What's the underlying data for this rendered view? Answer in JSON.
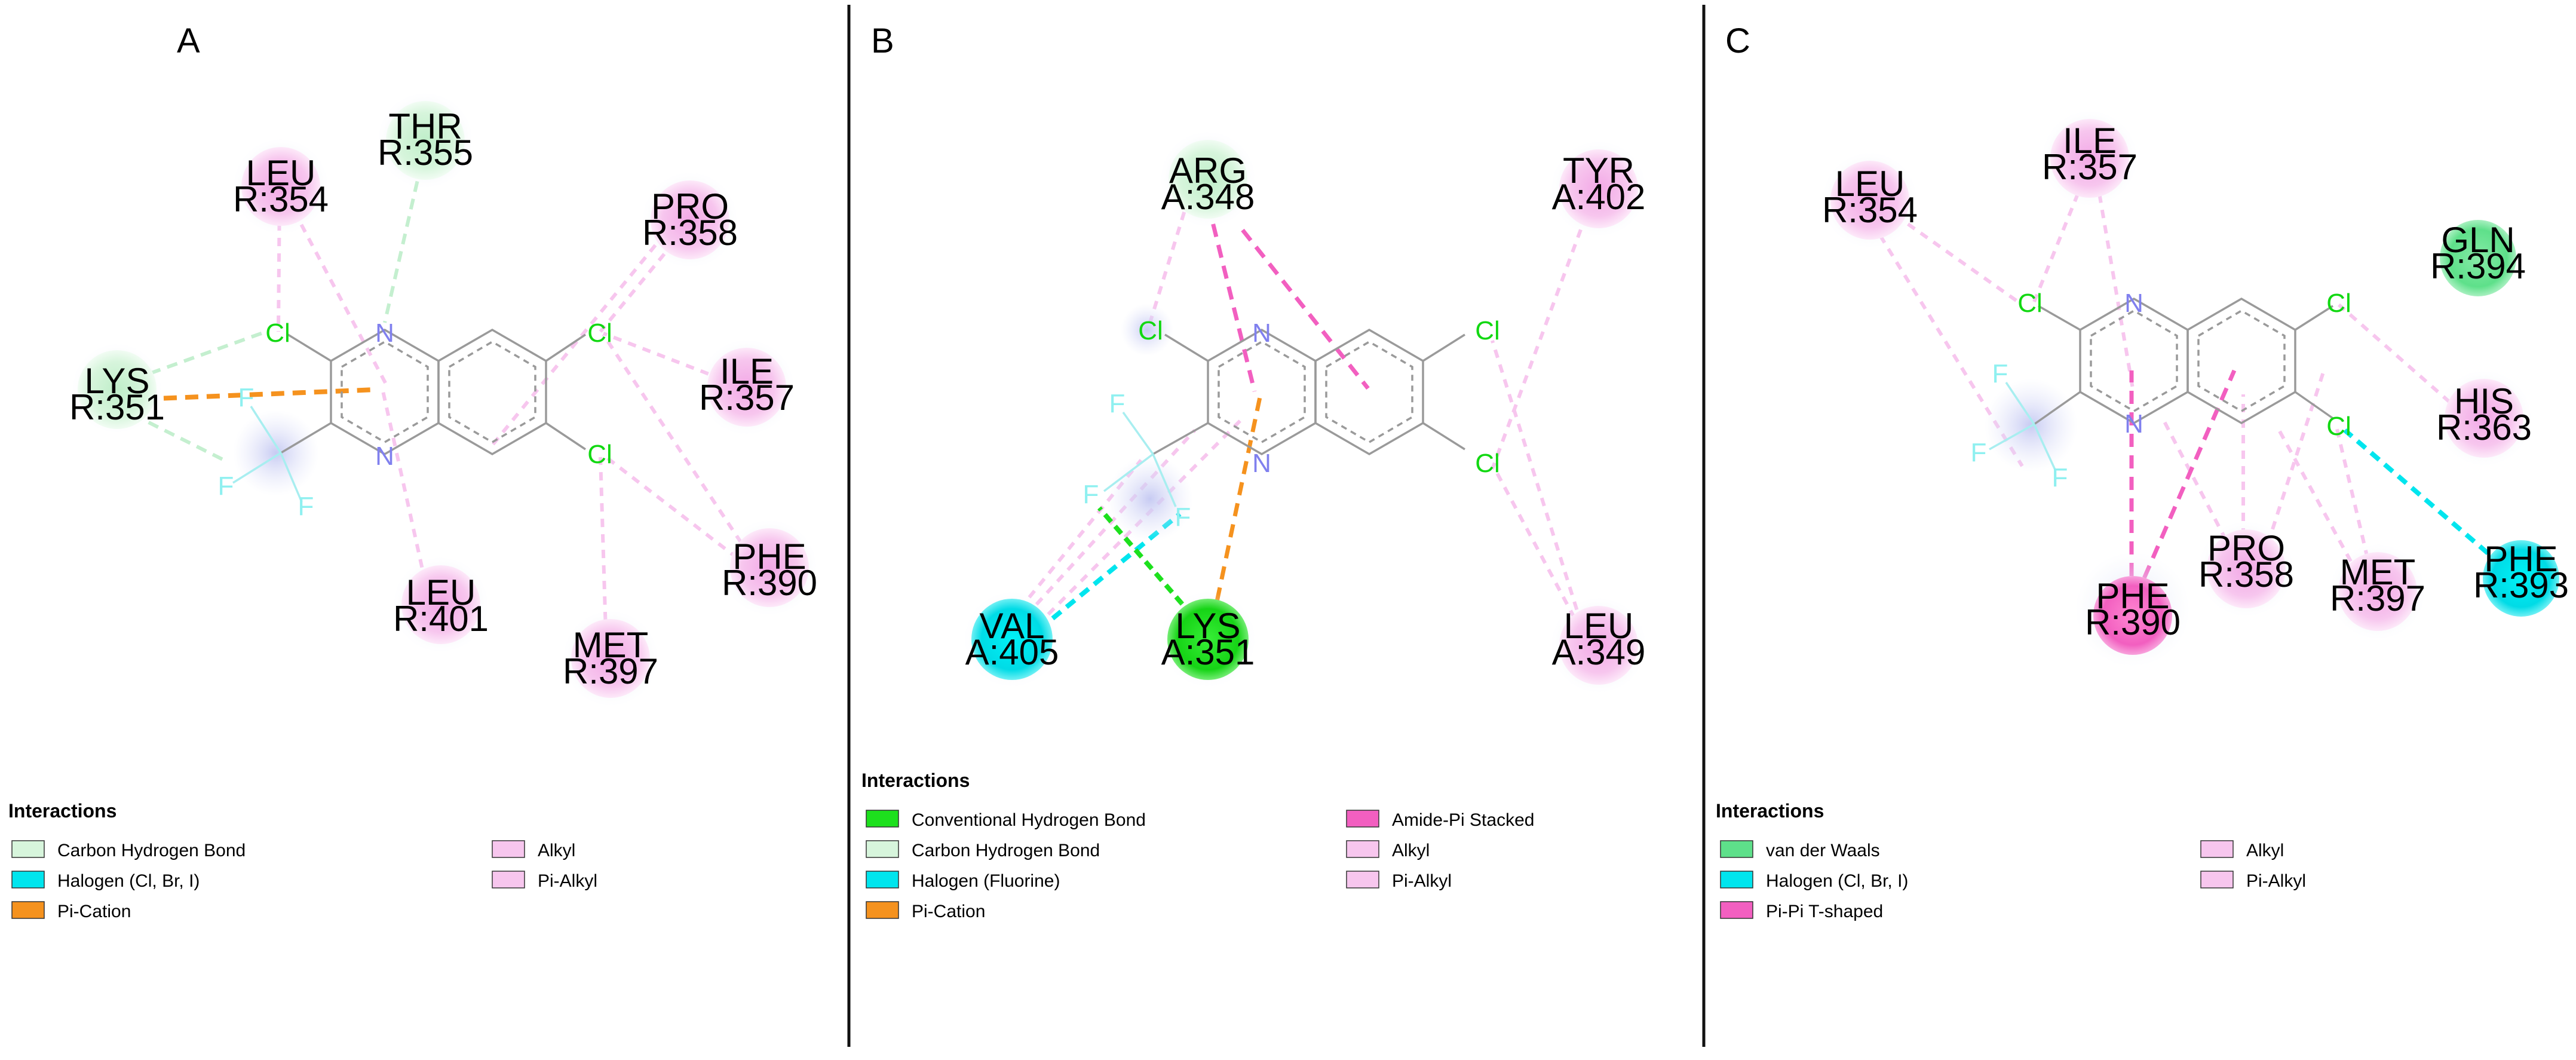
{
  "panels": [
    {
      "label": "A",
      "residues": [
        {
          "name": "THR",
          "id": "R:355",
          "kind": "carbon-h"
        },
        {
          "name": "LEU",
          "id": "R:354",
          "kind": "alkyl"
        },
        {
          "name": "PRO",
          "id": "R:358",
          "kind": "alkyl"
        },
        {
          "name": "LYS",
          "id": "R:351",
          "kind": "carbon-h"
        },
        {
          "name": "ILE",
          "id": "R:357",
          "kind": "alkyl"
        },
        {
          "name": "PHE",
          "id": "R:390",
          "kind": "alkyl"
        },
        {
          "name": "LEU",
          "id": "R:401",
          "kind": "alkyl"
        },
        {
          "name": "MET",
          "id": "R:397",
          "kind": "alkyl"
        }
      ],
      "legend": {
        "title": "Interactions",
        "items": [
          {
            "label": "Carbon Hydrogen Bond",
            "color": "#d7f5dc"
          },
          {
            "label": "Halogen (Cl, Br, I)",
            "color": "#00e5ee"
          },
          {
            "label": "Pi-Cation",
            "color": "#f5921e"
          },
          {
            "label": "Alkyl",
            "color": "#f7c6ee"
          },
          {
            "label": "Pi-Alkyl",
            "color": "#f7c6ee"
          }
        ]
      }
    },
    {
      "label": "B",
      "residues": [
        {
          "name": "ARG",
          "id": "A:348",
          "kind": "carbon-h"
        },
        {
          "name": "TYR",
          "id": "A:402",
          "kind": "alkyl"
        },
        {
          "name": "VAL",
          "id": "A:405",
          "kind": "halogen"
        },
        {
          "name": "LYS",
          "id": "A:351",
          "kind": "hbond"
        },
        {
          "name": "LEU",
          "id": "A:349",
          "kind": "alkyl"
        }
      ],
      "legend": {
        "title": "Interactions",
        "items": [
          {
            "label": "Conventional Hydrogen Bond",
            "color": "#1de01d"
          },
          {
            "label": "Carbon Hydrogen Bond",
            "color": "#d7f5dc"
          },
          {
            "label": "Halogen (Fluorine)",
            "color": "#00e5ee"
          },
          {
            "label": "Pi-Cation",
            "color": "#f5921e"
          },
          {
            "label": "Amide-Pi Stacked",
            "color": "#f25fc0"
          },
          {
            "label": "Alkyl",
            "color": "#f7c6ee"
          },
          {
            "label": "Pi-Alkyl",
            "color": "#f7c6ee"
          }
        ]
      }
    },
    {
      "label": "C",
      "residues": [
        {
          "name": "LEU",
          "id": "R:354",
          "kind": "alkyl"
        },
        {
          "name": "ILE",
          "id": "R:357",
          "kind": "alkyl"
        },
        {
          "name": "GLN",
          "id": "R:394",
          "kind": "vdw"
        },
        {
          "name": "HIS",
          "id": "R:363",
          "kind": "alkyl"
        },
        {
          "name": "PRO",
          "id": "R:358",
          "kind": "alkyl"
        },
        {
          "name": "PHE",
          "id": "R:390",
          "kind": "pipi"
        },
        {
          "name": "MET",
          "id": "R:397",
          "kind": "alkyl"
        },
        {
          "name": "PHE",
          "id": "R:393",
          "kind": "halogen"
        }
      ],
      "legend": {
        "title": "Interactions",
        "items": [
          {
            "label": "van der Waals",
            "color": "#5ee08a"
          },
          {
            "label": "Halogen (Cl, Br, I)",
            "color": "#00e5ee"
          },
          {
            "label": "Pi-Pi T-shaped",
            "color": "#f25fc0"
          },
          {
            "label": "Alkyl",
            "color": "#f7c6ee"
          },
          {
            "label": "Pi-Alkyl",
            "color": "#f7c6ee"
          }
        ]
      }
    }
  ],
  "atoms": {
    "nitrogen": "N",
    "chlorine": "Cl",
    "fluorine": "F"
  },
  "colors": {
    "alkyl": "#f7c6ee",
    "carbon-h": "#d7f5dc",
    "halogen": "#00e5ee",
    "hbond": "#1de01d",
    "vdw": "#5ee08a",
    "pipi": "#f25fc0",
    "pication": "#f5921e",
    "nitrogen": "#8080ee",
    "chlorine": "#12d812",
    "fluorine": "#8ff0f0",
    "bond": "#9a9a9a"
  }
}
